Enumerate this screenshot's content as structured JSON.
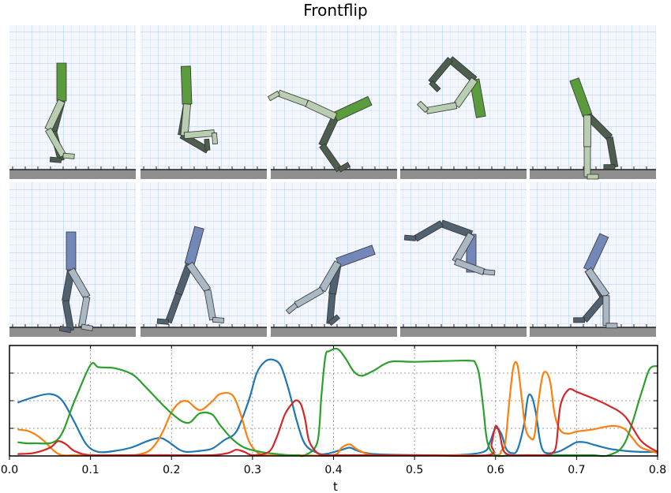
{
  "title": "Frontflip",
  "chart_data": {
    "type": "line",
    "title": "Frontflip",
    "xlabel": "t",
    "ylabel": "",
    "xlim": [
      0.0,
      0.8
    ],
    "ylim": [
      0,
      1
    ],
    "xticks": [
      "0.0",
      "0.1",
      "0.2",
      "0.3",
      "0.4",
      "0.5",
      "0.6",
      "0.7",
      "0.8"
    ],
    "grid": true,
    "series": [
      {
        "color": "#1f77b4",
        "x": [
          0.01,
          0.03,
          0.05,
          0.065,
          0.08,
          0.095,
          0.11,
          0.13,
          0.15,
          0.17,
          0.185,
          0.195,
          0.21,
          0.22,
          0.235,
          0.25,
          0.265,
          0.28,
          0.295,
          0.305,
          0.315,
          0.325,
          0.335,
          0.345,
          0.355,
          0.365,
          0.38,
          0.39,
          0.41,
          0.42,
          0.43,
          0.45,
          0.5,
          0.55,
          0.585,
          0.593,
          0.6,
          0.607,
          0.613,
          0.62,
          0.627,
          0.635,
          0.64,
          0.645,
          0.65,
          0.655,
          0.66,
          0.67,
          0.68,
          0.69,
          0.7,
          0.71,
          0.72,
          0.74,
          0.76,
          0.78,
          0.8
        ],
        "y": [
          0.49,
          0.54,
          0.57,
          0.51,
          0.31,
          0.1,
          0.03,
          0.04,
          0.07,
          0.13,
          0.16,
          0.13,
          0.05,
          0.03,
          0.04,
          0.06,
          0.14,
          0.22,
          0.5,
          0.76,
          0.87,
          0.89,
          0.83,
          0.6,
          0.31,
          0.1,
          0.02,
          0.01,
          0.05,
          0.07,
          0.04,
          0.01,
          0.0,
          0.0,
          0.03,
          0.12,
          0.25,
          0.2,
          0.06,
          0.02,
          0.05,
          0.28,
          0.54,
          0.54,
          0.38,
          0.13,
          0.03,
          0.02,
          0.04,
          0.08,
          0.12,
          0.12,
          0.1,
          0.06,
          0.04,
          0.03,
          0.03
        ]
      },
      {
        "color": "#ff7f0e",
        "x": [
          0.01,
          0.025,
          0.04,
          0.055,
          0.065,
          0.08,
          0.1,
          0.12,
          0.14,
          0.155,
          0.17,
          0.18,
          0.19,
          0.2,
          0.21,
          0.22,
          0.235,
          0.25,
          0.26,
          0.275,
          0.285,
          0.295,
          0.305,
          0.315,
          0.33,
          0.36,
          0.4,
          0.41,
          0.42,
          0.43,
          0.45,
          0.5,
          0.55,
          0.6,
          0.607,
          0.612,
          0.617,
          0.622,
          0.627,
          0.632,
          0.637,
          0.643,
          0.648,
          0.653,
          0.658,
          0.663,
          0.668,
          0.673,
          0.68,
          0.69,
          0.7,
          0.72,
          0.74,
          0.75,
          0.76,
          0.77,
          0.78,
          0.8
        ],
        "y": [
          0.24,
          0.22,
          0.15,
          0.04,
          0.0,
          0.0,
          0.0,
          0.0,
          0.0,
          0.0,
          0.03,
          0.1,
          0.23,
          0.4,
          0.49,
          0.5,
          0.42,
          0.5,
          0.57,
          0.56,
          0.39,
          0.14,
          0.03,
          0.0,
          0.0,
          0.0,
          0.0,
          0.07,
          0.1,
          0.05,
          0.0,
          0.0,
          0.0,
          0.0,
          0.04,
          0.12,
          0.5,
          0.82,
          0.84,
          0.55,
          0.25,
          0.16,
          0.18,
          0.5,
          0.74,
          0.77,
          0.66,
          0.38,
          0.23,
          0.2,
          0.22,
          0.24,
          0.27,
          0.27,
          0.24,
          0.15,
          0.07,
          0.02
        ]
      },
      {
        "color": "#2ca02c",
        "x": [
          0.01,
          0.03,
          0.06,
          0.08,
          0.1,
          0.11,
          0.13,
          0.15,
          0.16,
          0.17,
          0.2,
          0.22,
          0.235,
          0.25,
          0.26,
          0.275,
          0.29,
          0.31,
          0.33,
          0.345,
          0.355,
          0.365,
          0.38,
          0.385,
          0.39,
          0.395,
          0.405,
          0.415,
          0.425,
          0.435,
          0.45,
          0.47,
          0.5,
          0.55,
          0.57,
          0.575,
          0.58,
          0.585,
          0.59,
          0.6,
          0.62,
          0.64,
          0.66,
          0.68,
          0.7,
          0.72,
          0.74,
          0.76,
          0.78,
          0.79,
          0.8
        ],
        "y": [
          0.12,
          0.11,
          0.15,
          0.5,
          0.84,
          0.82,
          0.81,
          0.76,
          0.7,
          0.62,
          0.39,
          0.3,
          0.39,
          0.38,
          0.28,
          0.15,
          0.07,
          0.03,
          0.01,
          0.0,
          0.0,
          0.0,
          0.12,
          0.55,
          0.92,
          0.97,
          0.99,
          0.9,
          0.78,
          0.74,
          0.79,
          0.87,
          0.87,
          0.88,
          0.88,
          0.86,
          0.74,
          0.43,
          0.12,
          0.0,
          0.0,
          0.0,
          0.0,
          0.0,
          0.0,
          0.0,
          0.0,
          0.12,
          0.58,
          0.8,
          0.83
        ]
      },
      {
        "color": "#d62728",
        "x": [
          0.01,
          0.03,
          0.05,
          0.06,
          0.07,
          0.08,
          0.1,
          0.15,
          0.2,
          0.25,
          0.27,
          0.28,
          0.29,
          0.3,
          0.32,
          0.33,
          0.34,
          0.35,
          0.355,
          0.36,
          0.365,
          0.37,
          0.38,
          0.39,
          0.4,
          0.5,
          0.59,
          0.595,
          0.6,
          0.605,
          0.61,
          0.62,
          0.64,
          0.66,
          0.67,
          0.675,
          0.68,
          0.69,
          0.7,
          0.71,
          0.72,
          0.74,
          0.76,
          0.78,
          0.8
        ],
        "y": [
          0.01,
          0.02,
          0.07,
          0.13,
          0.1,
          0.04,
          0.0,
          0.0,
          0.0,
          0.0,
          0.02,
          0.05,
          0.03,
          0.0,
          0.03,
          0.17,
          0.38,
          0.49,
          0.51,
          0.47,
          0.33,
          0.13,
          0.02,
          0.0,
          0.0,
          0.0,
          0.0,
          0.1,
          0.27,
          0.2,
          0.04,
          0.0,
          0.0,
          0.0,
          0.02,
          0.1,
          0.46,
          0.61,
          0.59,
          0.56,
          0.53,
          0.46,
          0.36,
          0.13,
          0.03
        ]
      }
    ]
  },
  "frames": {
    "green_pose_angles_deg": [
      [
        -90,
        105,
        75,
        115,
        60,
        5
      ],
      [
        -92,
        100,
        30,
        95,
        -5,
        85
      ],
      [
        -25,
        115,
        55,
        205,
        200,
        150
      ],
      [
        80,
        220,
        130,
        125,
        170,
        225
      ],
      [
        -110,
        45,
        80,
        90,
        90,
        0
      ]
    ],
    "blue_pose_angles_deg": [
      [
        -90,
        100,
        80,
        60,
        100,
        10
      ],
      [
        -75,
        110,
        110,
        55,
        80,
        5
      ],
      [
        -20,
        100,
        95,
        120,
        150,
        140
      ],
      [
        90,
        200,
        150,
        120,
        20,
        5
      ],
      [
        -65,
        60,
        130,
        55,
        90,
        0
      ]
    ]
  }
}
